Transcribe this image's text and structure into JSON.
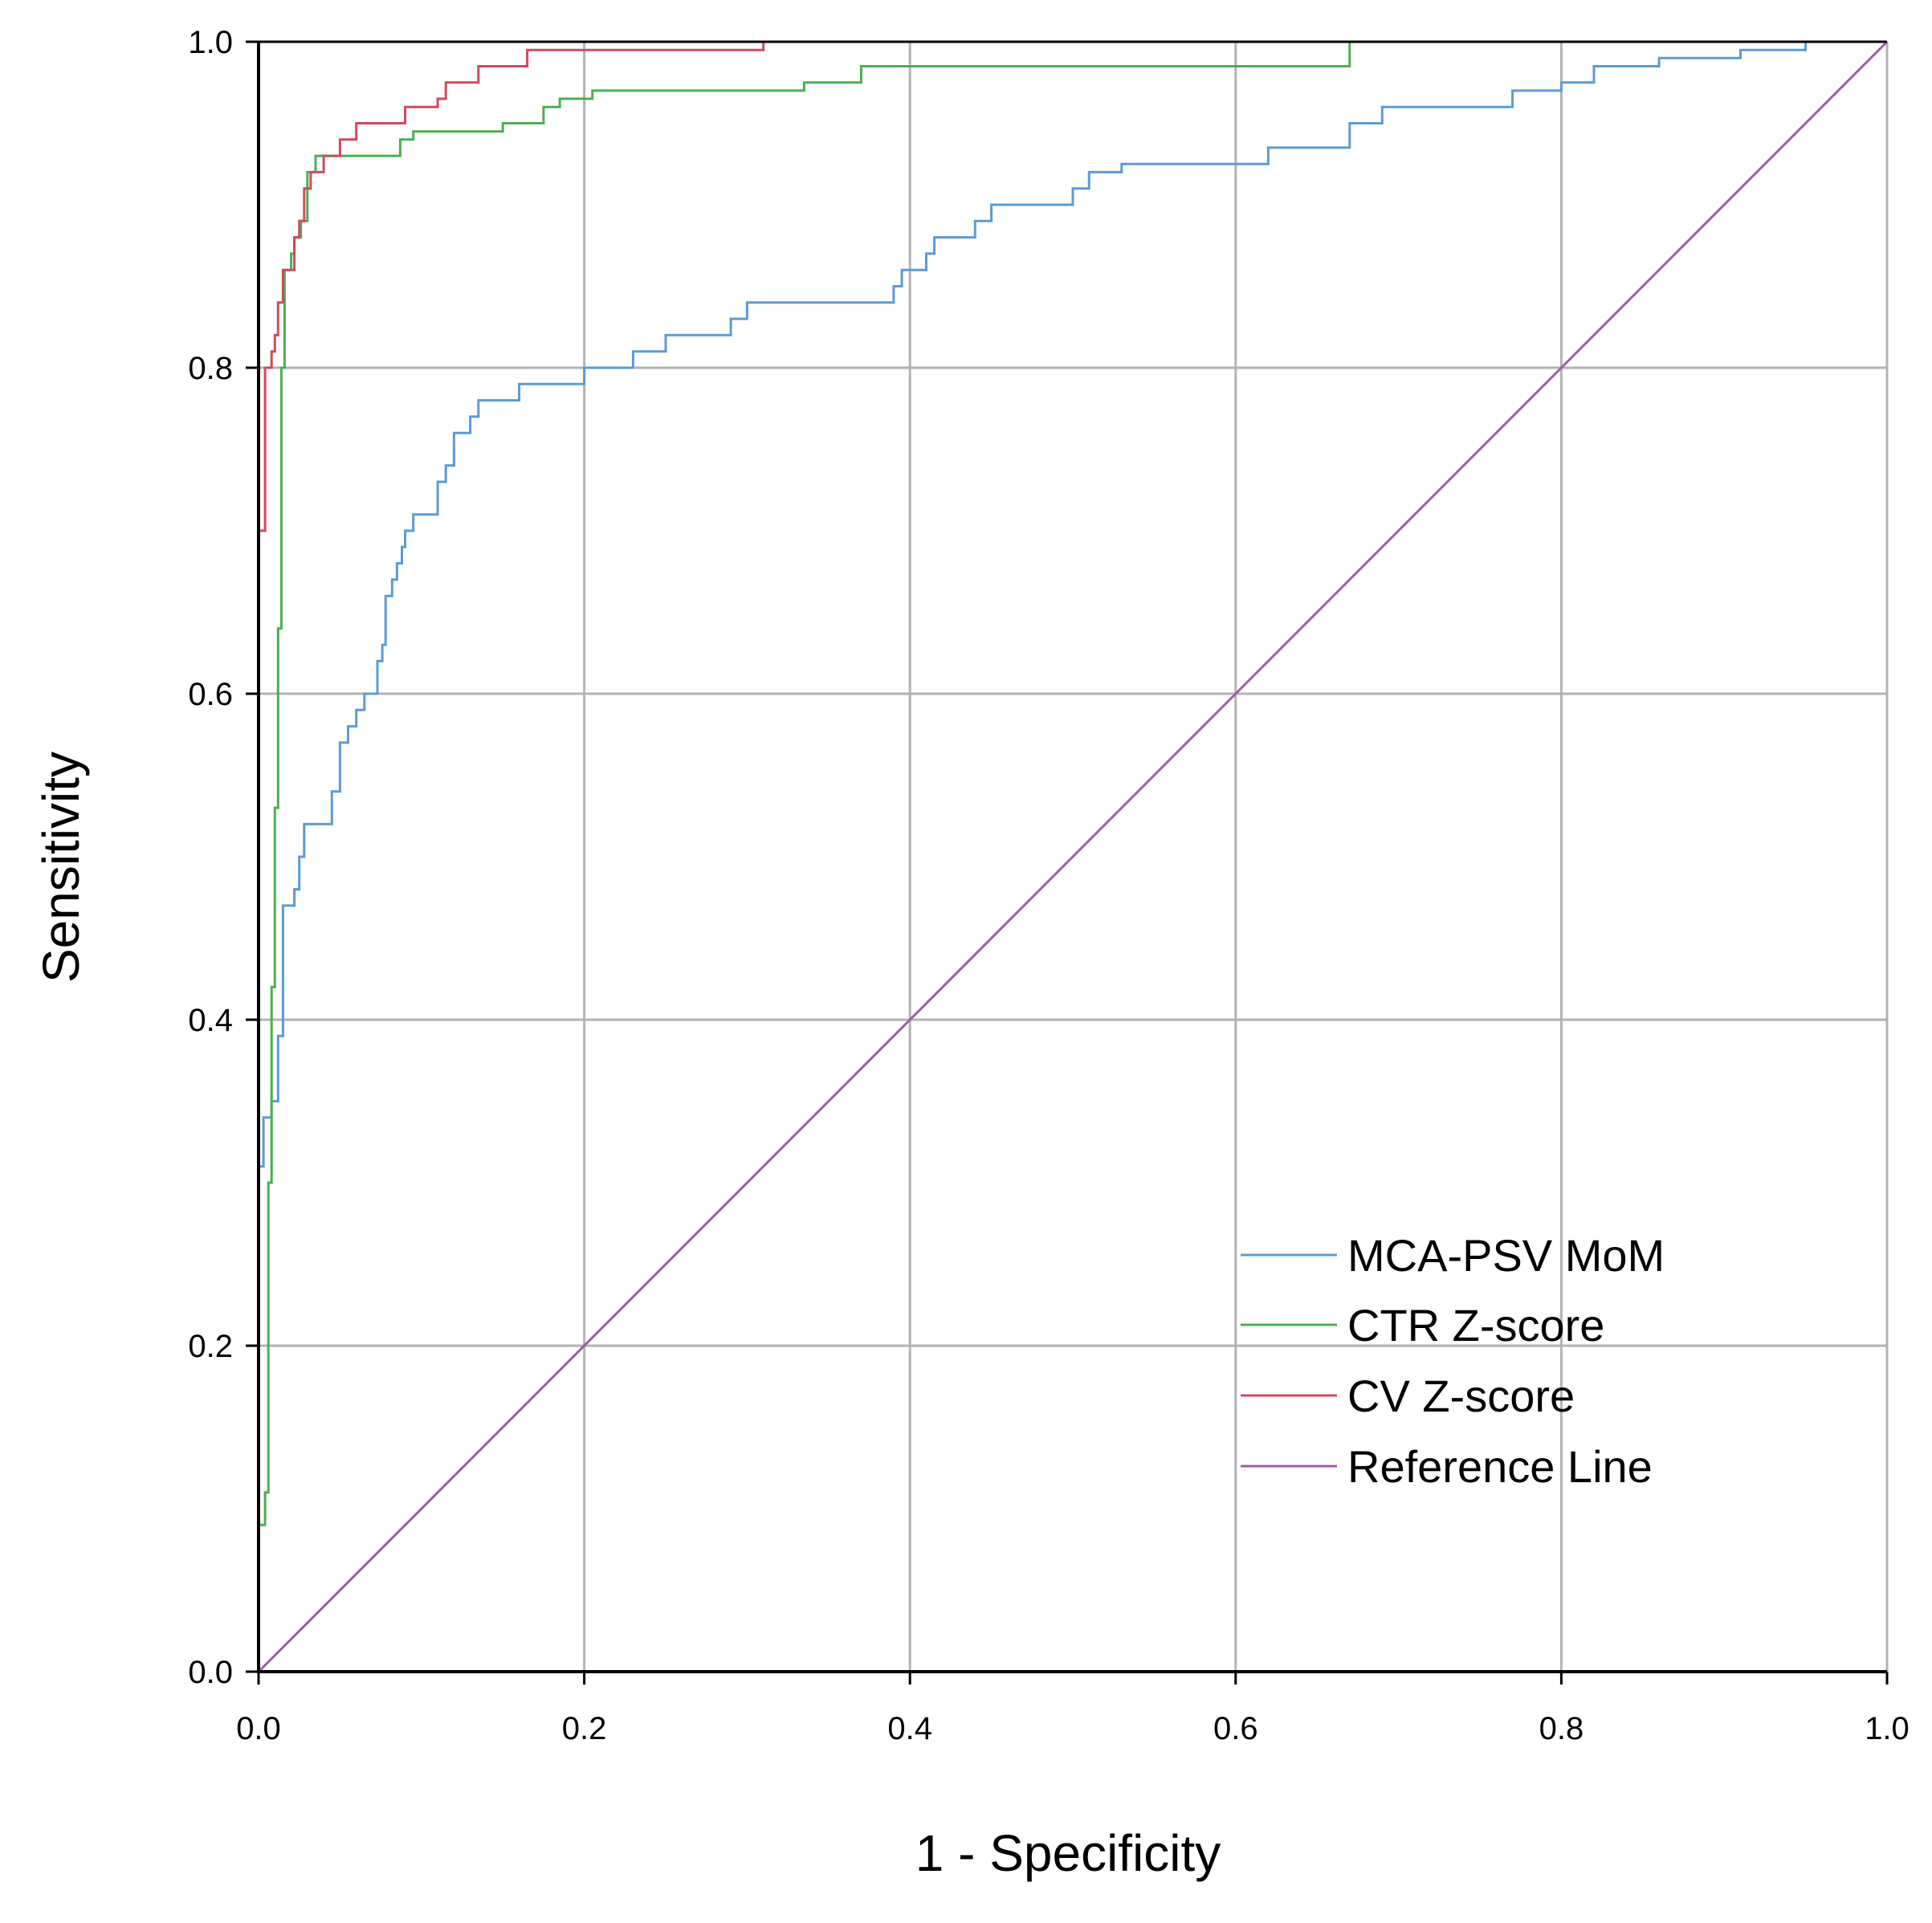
{
  "chart_data": {
    "type": "line",
    "title": "",
    "xlabel": "1 - Specificity",
    "ylabel": "Sensitivity",
    "xlim": [
      0,
      1
    ],
    "ylim": [
      0,
      1
    ],
    "grid": true,
    "legend_position": "bottom-right",
    "x_ticks": [
      "0.0",
      "0.2",
      "0.4",
      "0.6",
      "0.8",
      "1.0"
    ],
    "y_ticks": [
      "0.0",
      "0.2",
      "0.4",
      "0.6",
      "0.8",
      "1.0"
    ],
    "series": [
      {
        "name": "MCA-PSV MoM",
        "color": "#5b9bd5",
        "points": [
          [
            0,
            0
          ],
          [
            0,
            0.31
          ],
          [
            0.003,
            0.31
          ],
          [
            0.003,
            0.34
          ],
          [
            0.008,
            0.34
          ],
          [
            0.008,
            0.35
          ],
          [
            0.012,
            0.35
          ],
          [
            0.012,
            0.39
          ],
          [
            0.015,
            0.39
          ],
          [
            0.015,
            0.47
          ],
          [
            0.022,
            0.47
          ],
          [
            0.022,
            0.48
          ],
          [
            0.025,
            0.48
          ],
          [
            0.025,
            0.5
          ],
          [
            0.028,
            0.5
          ],
          [
            0.028,
            0.52
          ],
          [
            0.045,
            0.52
          ],
          [
            0.045,
            0.54
          ],
          [
            0.05,
            0.54
          ],
          [
            0.05,
            0.57
          ],
          [
            0.055,
            0.57
          ],
          [
            0.055,
            0.58
          ],
          [
            0.06,
            0.58
          ],
          [
            0.06,
            0.59
          ],
          [
            0.065,
            0.59
          ],
          [
            0.065,
            0.6
          ],
          [
            0.073,
            0.6
          ],
          [
            0.073,
            0.62
          ],
          [
            0.076,
            0.62
          ],
          [
            0.076,
            0.63
          ],
          [
            0.078,
            0.63
          ],
          [
            0.078,
            0.66
          ],
          [
            0.082,
            0.66
          ],
          [
            0.082,
            0.67
          ],
          [
            0.085,
            0.67
          ],
          [
            0.085,
            0.68
          ],
          [
            0.088,
            0.68
          ],
          [
            0.088,
            0.69
          ],
          [
            0.09,
            0.69
          ],
          [
            0.09,
            0.7
          ],
          [
            0.095,
            0.7
          ],
          [
            0.095,
            0.71
          ],
          [
            0.11,
            0.71
          ],
          [
            0.11,
            0.73
          ],
          [
            0.115,
            0.73
          ],
          [
            0.115,
            0.74
          ],
          [
            0.12,
            0.74
          ],
          [
            0.12,
            0.76
          ],
          [
            0.13,
            0.76
          ],
          [
            0.13,
            0.77
          ],
          [
            0.135,
            0.77
          ],
          [
            0.135,
            0.78
          ],
          [
            0.16,
            0.78
          ],
          [
            0.16,
            0.79
          ],
          [
            0.2,
            0.79
          ],
          [
            0.2,
            0.8
          ],
          [
            0.23,
            0.8
          ],
          [
            0.23,
            0.81
          ],
          [
            0.25,
            0.81
          ],
          [
            0.25,
            0.82
          ],
          [
            0.29,
            0.82
          ],
          [
            0.29,
            0.83
          ],
          [
            0.3,
            0.83
          ],
          [
            0.3,
            0.84
          ],
          [
            0.39,
            0.84
          ],
          [
            0.39,
            0.85
          ],
          [
            0.395,
            0.85
          ],
          [
            0.395,
            0.86
          ],
          [
            0.41,
            0.86
          ],
          [
            0.41,
            0.87
          ],
          [
            0.415,
            0.87
          ],
          [
            0.415,
            0.88
          ],
          [
            0.44,
            0.88
          ],
          [
            0.44,
            0.89
          ],
          [
            0.45,
            0.89
          ],
          [
            0.45,
            0.9
          ],
          [
            0.5,
            0.9
          ],
          [
            0.5,
            0.91
          ],
          [
            0.51,
            0.91
          ],
          [
            0.51,
            0.92
          ],
          [
            0.53,
            0.92
          ],
          [
            0.53,
            0.925
          ],
          [
            0.62,
            0.925
          ],
          [
            0.62,
            0.935
          ],
          [
            0.67,
            0.935
          ],
          [
            0.67,
            0.95
          ],
          [
            0.69,
            0.95
          ],
          [
            0.69,
            0.96
          ],
          [
            0.77,
            0.96
          ],
          [
            0.77,
            0.97
          ],
          [
            0.8,
            0.97
          ],
          [
            0.8,
            0.975
          ],
          [
            0.82,
            0.975
          ],
          [
            0.82,
            0.985
          ],
          [
            0.86,
            0.985
          ],
          [
            0.86,
            0.99
          ],
          [
            0.91,
            0.99
          ],
          [
            0.91,
            0.995
          ],
          [
            0.95,
            0.995
          ],
          [
            0.95,
            1.0
          ],
          [
            1.0,
            1.0
          ]
        ]
      },
      {
        "name": "CTR Z-score",
        "color": "#4caf50",
        "points": [
          [
            0,
            0
          ],
          [
            0,
            0.09
          ],
          [
            0.004,
            0.09
          ],
          [
            0.004,
            0.11
          ],
          [
            0.006,
            0.11
          ],
          [
            0.006,
            0.3
          ],
          [
            0.008,
            0.3
          ],
          [
            0.008,
            0.42
          ],
          [
            0.01,
            0.42
          ],
          [
            0.01,
            0.53
          ],
          [
            0.012,
            0.53
          ],
          [
            0.012,
            0.64
          ],
          [
            0.014,
            0.64
          ],
          [
            0.014,
            0.8
          ],
          [
            0.016,
            0.8
          ],
          [
            0.016,
            0.86
          ],
          [
            0.02,
            0.86
          ],
          [
            0.02,
            0.87
          ],
          [
            0.022,
            0.87
          ],
          [
            0.022,
            0.88
          ],
          [
            0.026,
            0.88
          ],
          [
            0.026,
            0.89
          ],
          [
            0.03,
            0.89
          ],
          [
            0.03,
            0.92
          ],
          [
            0.035,
            0.92
          ],
          [
            0.035,
            0.93
          ],
          [
            0.087,
            0.93
          ],
          [
            0.087,
            0.94
          ],
          [
            0.095,
            0.94
          ],
          [
            0.095,
            0.945
          ],
          [
            0.15,
            0.945
          ],
          [
            0.15,
            0.95
          ],
          [
            0.175,
            0.95
          ],
          [
            0.175,
            0.96
          ],
          [
            0.185,
            0.96
          ],
          [
            0.185,
            0.965
          ],
          [
            0.205,
            0.965
          ],
          [
            0.205,
            0.97
          ],
          [
            0.335,
            0.97
          ],
          [
            0.335,
            0.975
          ],
          [
            0.37,
            0.975
          ],
          [
            0.37,
            0.985
          ],
          [
            0.67,
            0.985
          ],
          [
            0.67,
            1.0
          ],
          [
            1.0,
            1.0
          ]
        ]
      },
      {
        "name": "CV Z-score",
        "color": "#d04a60",
        "points": [
          [
            0,
            0
          ],
          [
            0,
            0.7
          ],
          [
            0.004,
            0.7
          ],
          [
            0.004,
            0.8
          ],
          [
            0.008,
            0.8
          ],
          [
            0.008,
            0.81
          ],
          [
            0.01,
            0.81
          ],
          [
            0.01,
            0.82
          ],
          [
            0.012,
            0.82
          ],
          [
            0.012,
            0.84
          ],
          [
            0.015,
            0.84
          ],
          [
            0.015,
            0.86
          ],
          [
            0.022,
            0.86
          ],
          [
            0.022,
            0.88
          ],
          [
            0.025,
            0.88
          ],
          [
            0.025,
            0.89
          ],
          [
            0.028,
            0.89
          ],
          [
            0.028,
            0.91
          ],
          [
            0.032,
            0.91
          ],
          [
            0.032,
            0.92
          ],
          [
            0.04,
            0.92
          ],
          [
            0.04,
            0.93
          ],
          [
            0.05,
            0.93
          ],
          [
            0.05,
            0.94
          ],
          [
            0.06,
            0.94
          ],
          [
            0.06,
            0.95
          ],
          [
            0.09,
            0.95
          ],
          [
            0.09,
            0.96
          ],
          [
            0.11,
            0.96
          ],
          [
            0.11,
            0.965
          ],
          [
            0.115,
            0.965
          ],
          [
            0.115,
            0.975
          ],
          [
            0.135,
            0.975
          ],
          [
            0.135,
            0.985
          ],
          [
            0.165,
            0.985
          ],
          [
            0.165,
            0.995
          ],
          [
            0.31,
            0.995
          ],
          [
            0.31,
            1.0
          ],
          [
            1.0,
            1.0
          ]
        ]
      },
      {
        "name": "Reference Line",
        "color": "#a05aa8",
        "points": [
          [
            0,
            0
          ],
          [
            1,
            1
          ]
        ]
      }
    ]
  }
}
